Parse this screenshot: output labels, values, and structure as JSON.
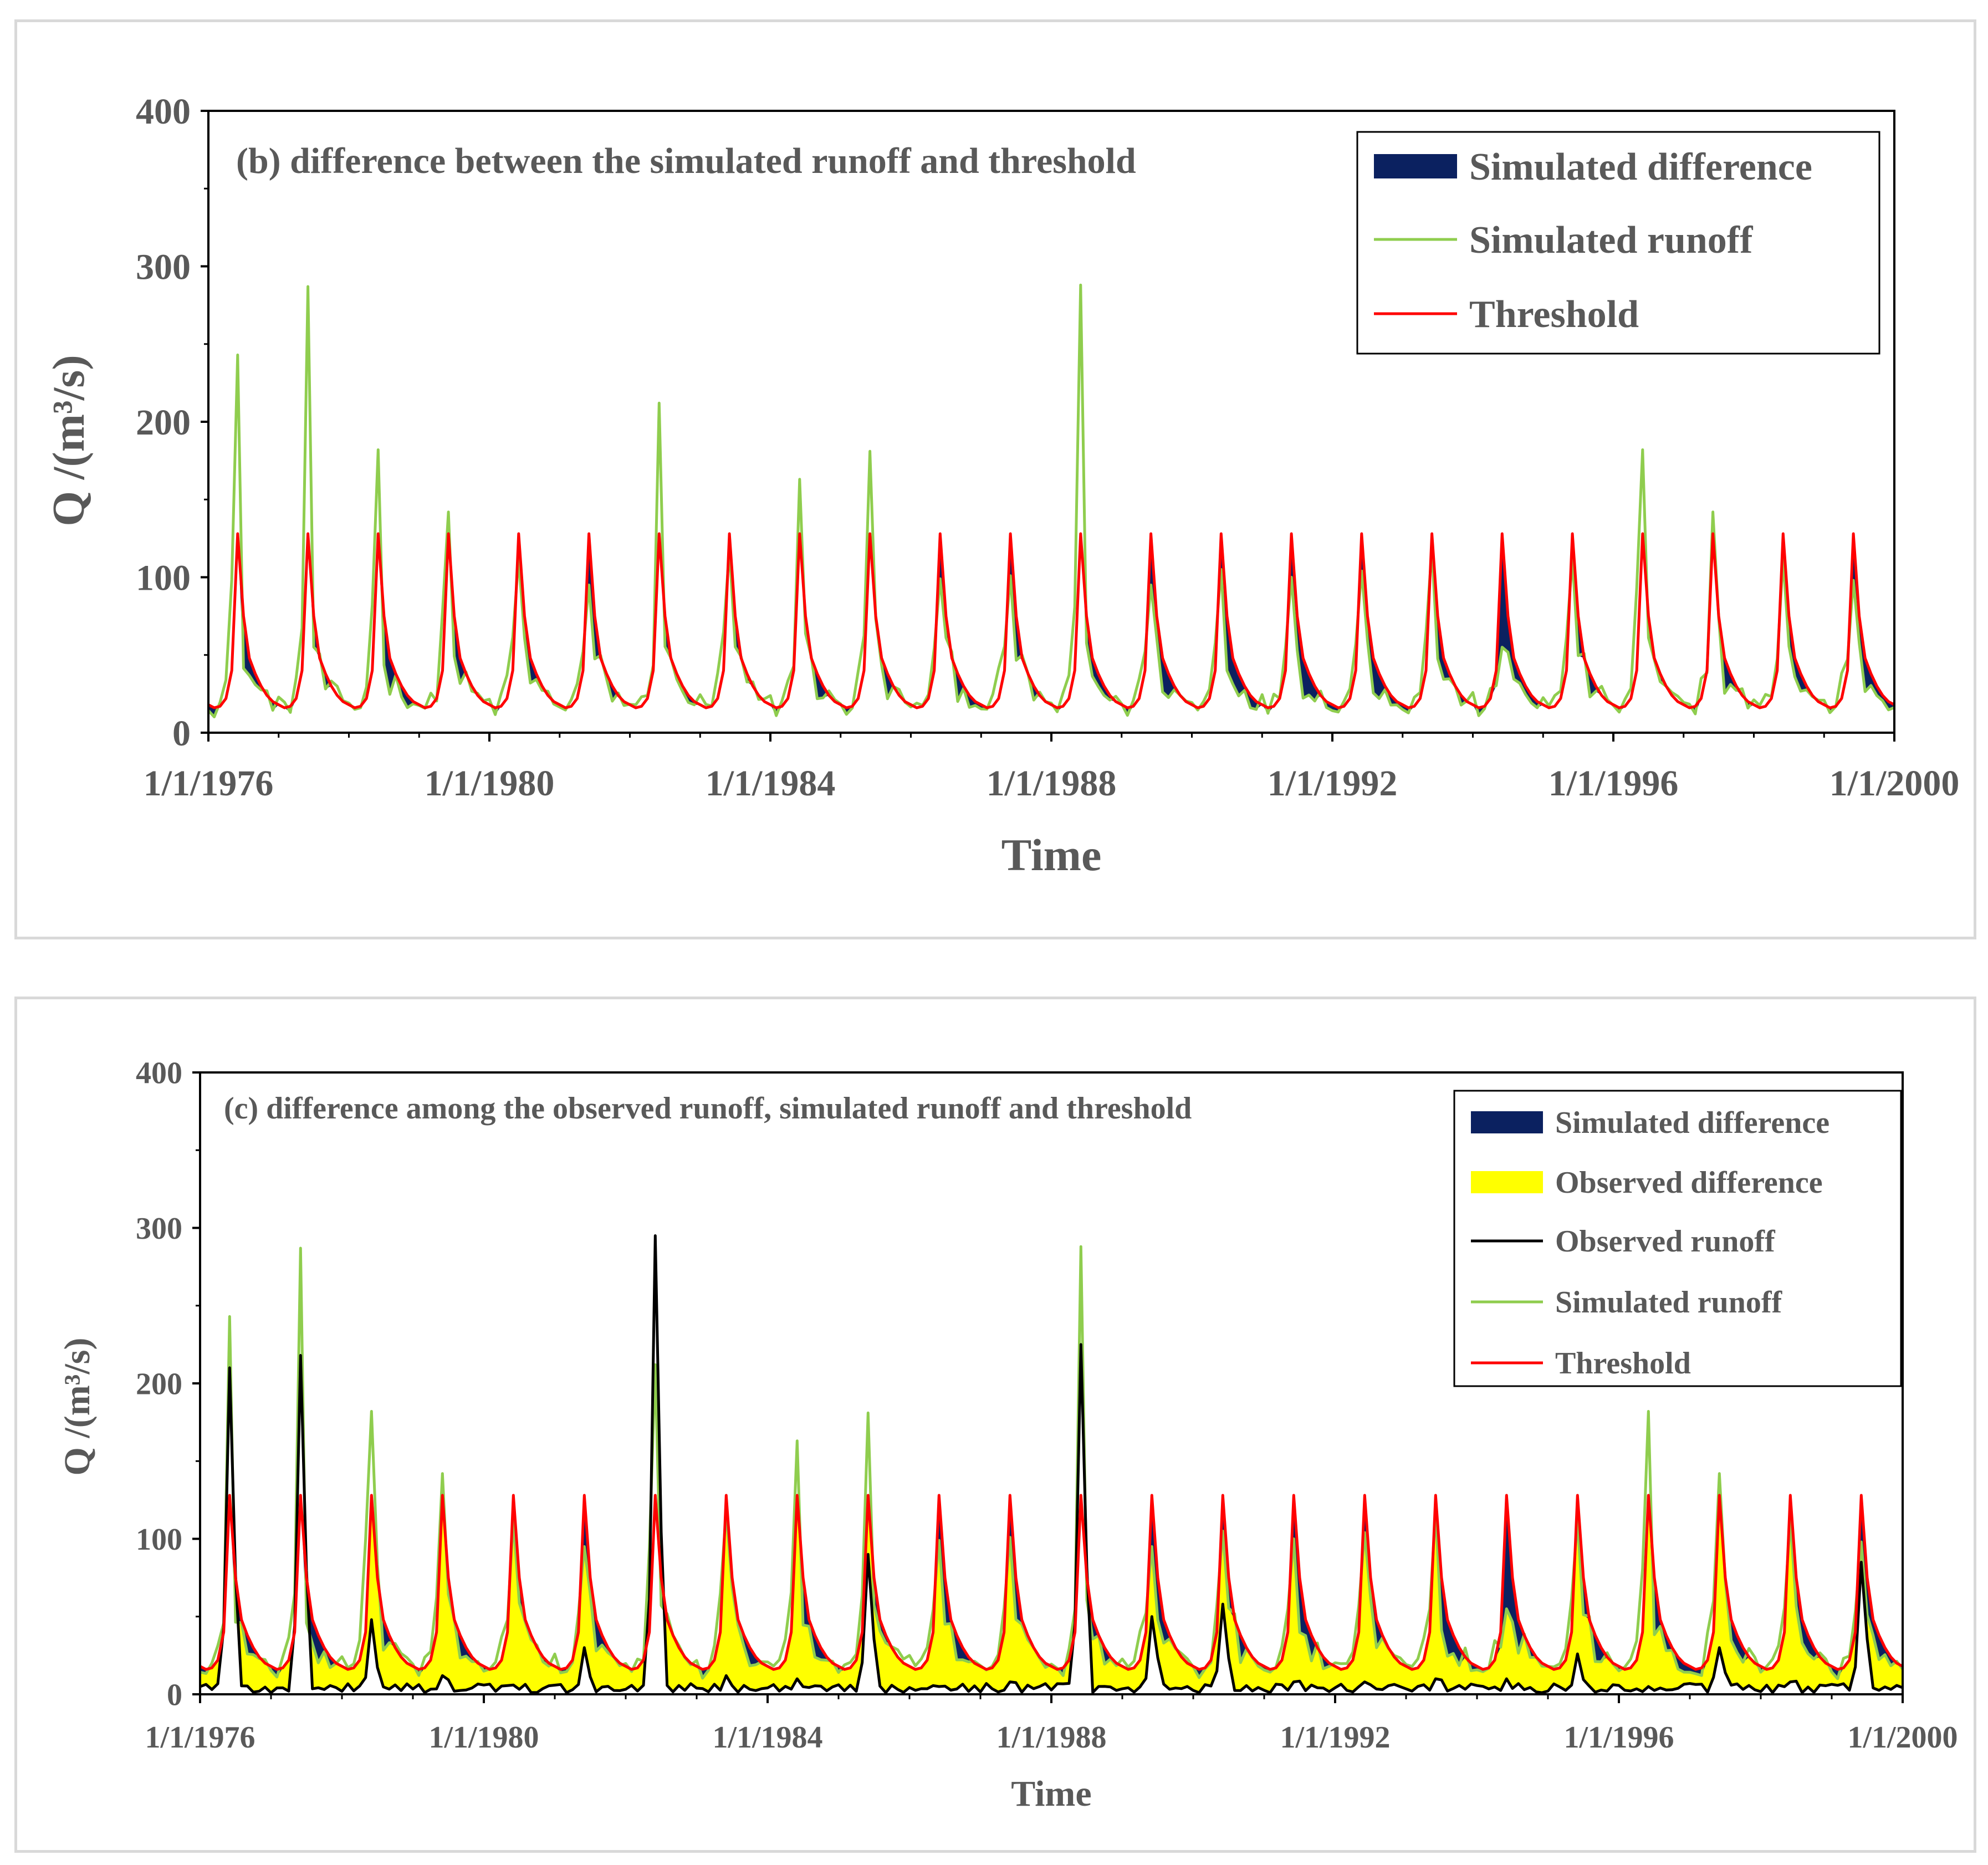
{
  "colors": {
    "simulated_difference": "#0b2160",
    "observed_difference": "#ffff00",
    "observed_runoff": "#000000",
    "simulated_runoff": "#8fcd4e",
    "threshold": "#ff0000",
    "text": "#595959"
  },
  "chart_data": [
    {
      "id": "b",
      "type": "area",
      "title": "(b) difference between the simulated runoff and threshold",
      "xlabel": "Time",
      "ylabel": "Q /(m³/s)",
      "xlim": [
        1976,
        2000
      ],
      "ylim": [
        0,
        400
      ],
      "yticks": [
        0,
        100,
        200,
        300,
        400
      ],
      "xticks": [
        1976,
        1980,
        1984,
        1988,
        1992,
        1996,
        2000
      ],
      "xtick_labels": [
        "1/1/1976",
        "1/1/1980",
        "1/1/1984",
        "1/1/1988",
        "1/1/1992",
        "1/1/1996",
        "1/1/2000"
      ],
      "legend": {
        "position": "top-right",
        "entries": [
          {
            "label": "Simulated difference",
            "kind": "fill",
            "color_key": "simulated_difference"
          },
          {
            "label": "Simulated runoff",
            "kind": "line",
            "color_key": "simulated_runoff"
          },
          {
            "label": "Threshold",
            "kind": "line",
            "color_key": "threshold"
          }
        ]
      },
      "series": [
        {
          "name": "Simulated runoff",
          "annual_peaks": [
            243,
            287,
            182,
            142,
            112,
            95,
            212,
            118,
            163,
            181,
            99,
            101,
            288,
            95,
            105,
            100,
            104,
            118,
            55,
            112,
            182,
            142,
            112,
            98
          ]
        },
        {
          "name": "Threshold",
          "monthly_profile": [
            18,
            16,
            17,
            22,
            40,
            128,
            75,
            48,
            38,
            30,
            24,
            20
          ]
        }
      ]
    },
    {
      "id": "c",
      "type": "area",
      "title": "(c) difference among the observed runoff, simulated runoff and threshold",
      "xlabel": "Time",
      "ylabel": "Q /(m³/s)",
      "xlim": [
        1976,
        2000
      ],
      "ylim": [
        0,
        400
      ],
      "yticks": [
        0,
        100,
        200,
        300,
        400
      ],
      "xticks": [
        1976,
        1980,
        1984,
        1988,
        1992,
        1996,
        2000
      ],
      "xtick_labels": [
        "1/1/1976",
        "1/1/1980",
        "1/1/1984",
        "1/1/1988",
        "1/1/1992",
        "1/1/1996",
        "1/1/2000"
      ],
      "legend": {
        "position": "top-right",
        "entries": [
          {
            "label": "Simulated difference",
            "kind": "fill",
            "color_key": "simulated_difference"
          },
          {
            "label": "Observed difference",
            "kind": "fill",
            "color_key": "observed_difference"
          },
          {
            "label": "Observed runoff",
            "kind": "line",
            "color_key": "observed_runoff"
          },
          {
            "label": "Simulated runoff",
            "kind": "line",
            "color_key": "simulated_runoff"
          },
          {
            "label": "Threshold",
            "kind": "line",
            "color_key": "threshold"
          }
        ]
      },
      "series": [
        {
          "name": "Simulated runoff",
          "annual_peaks": [
            243,
            287,
            182,
            142,
            112,
            95,
            212,
            118,
            163,
            181,
            99,
            101,
            288,
            95,
            105,
            100,
            104,
            118,
            55,
            112,
            182,
            142,
            112,
            98
          ]
        },
        {
          "name": "Observed runoff",
          "annual_peaks": [
            210,
            218,
            48,
            12,
            6,
            30,
            295,
            12,
            10,
            90,
            5,
            8,
            225,
            50,
            58,
            8,
            8,
            10,
            10,
            26,
            5,
            30,
            8,
            85
          ]
        },
        {
          "name": "Threshold",
          "monthly_profile": [
            18,
            16,
            17,
            22,
            40,
            128,
            75,
            48,
            38,
            30,
            24,
            20
          ]
        }
      ]
    }
  ]
}
